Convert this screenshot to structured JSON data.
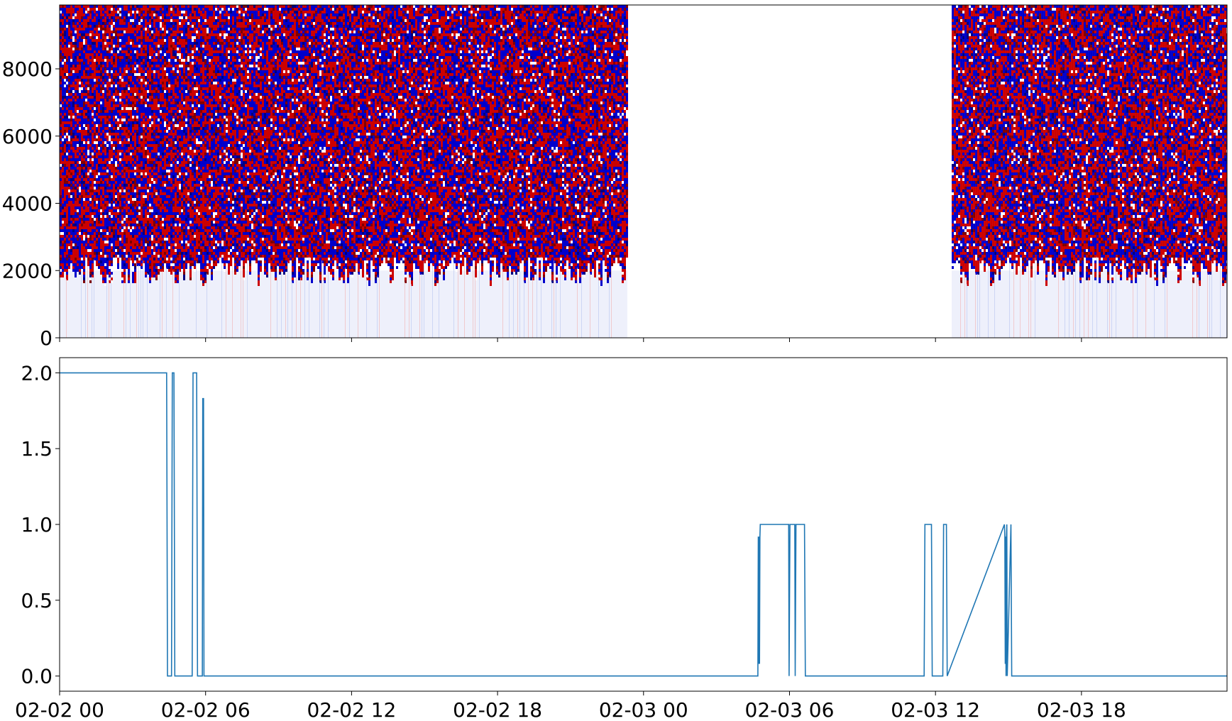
{
  "chart_data": [
    {
      "type": "heatmap",
      "title": "",
      "xlabel": "",
      "ylabel": "",
      "colormap": "seismic",
      "colors": {
        "negative": "#0000cc",
        "positive": "#cc0000",
        "zero": "#ffffff"
      },
      "ylim": [
        0,
        9900
      ],
      "yticks": [
        0,
        2000,
        4000,
        6000,
        8000
      ],
      "ytick_labels": [
        "0",
        "2000",
        "4000",
        "6000",
        "8000"
      ],
      "x_start": "02-02 00:00",
      "x_end": "02-03 23:59",
      "data_present_ranges": [
        {
          "start": "02-02 00:00",
          "end": "02-02 23:20"
        },
        {
          "start": "02-03 12:40",
          "end": "02-03 23:59"
        }
      ],
      "low_amplitude_band_upper_edge": 2000,
      "shared_x_axis": true
    },
    {
      "type": "line",
      "title": "",
      "xlabel": "",
      "ylabel": "",
      "color": "#1f77b4",
      "ylim": [
        -0.1,
        2.1
      ],
      "yticks": [
        0.0,
        0.5,
        1.0,
        1.5,
        2.0
      ],
      "ytick_labels": [
        "0.0",
        "0.5",
        "1.0",
        "1.5",
        "2.0"
      ],
      "xlim": [
        "02-02 00:00",
        "02-03 23:59"
      ],
      "xticks": [
        "02-02 00:00",
        "02-02 06:00",
        "02-02 12:00",
        "02-02 18:00",
        "02-03 00:00",
        "02-03 06:00",
        "02-03 12:00",
        "02-03 18:00"
      ],
      "xtick_labels": [
        "02-02 00",
        "02-02 06",
        "02-02 12",
        "02-02 18",
        "02-03 00",
        "02-03 06",
        "02-03 12",
        "02-03 18"
      ],
      "x": [
        "02-02 00:00",
        "02-02 04:24",
        "02-02 04:26",
        "02-02 04:36",
        "02-02 04:38",
        "02-02 04:42",
        "02-02 04:44",
        "02-02 05:27",
        "02-02 05:29",
        "02-02 05:38",
        "02-02 05:40",
        "02-02 05:52",
        "02-02 05:53",
        "02-02 05:55",
        "02-02 05:56",
        "02-03 04:42",
        "02-03 04:43",
        "02-03 04:44",
        "02-03 04:45",
        "02-03 04:46",
        "02-03 04:47",
        "02-03 04:48",
        "02-03 05:58",
        "02-03 05:59",
        "02-03 06:01",
        "02-03 06:13",
        "02-03 06:14",
        "02-03 06:16",
        "02-03 06:37",
        "02-03 06:39",
        "02-03 11:32",
        "02-03 11:34",
        "02-03 11:50",
        "02-03 11:52",
        "02-03 12:18",
        "02-03 12:20",
        "02-03 12:27",
        "02-03 12:29",
        "02-03 14:50",
        "02-03 14:51",
        "02-03 14:52",
        "02-03 14:53",
        "02-03 14:54",
        "02-03 14:55",
        "02-03 14:56",
        "02-03 14:57",
        "02-03 15:06",
        "02-03 15:08",
        "02-03 23:59"
      ],
      "y": [
        2.0,
        2.0,
        0.0,
        0.0,
        2.0,
        2.0,
        0.0,
        0.0,
        2.0,
        2.0,
        0.0,
        0.0,
        1.83,
        1.83,
        0.0,
        0.0,
        0.92,
        0.08,
        0.92,
        0.08,
        0.92,
        1.0,
        1.0,
        0.0,
        1.0,
        1.0,
        0.0,
        1.0,
        1.0,
        0.0,
        0.0,
        1.0,
        1.0,
        0.0,
        0.0,
        1.0,
        1.0,
        0.0,
        1.0,
        0.92,
        0.08,
        0.92,
        0.0,
        0.92,
        1.0,
        0.0,
        1.0,
        0.0,
        0.0
      ]
    }
  ]
}
